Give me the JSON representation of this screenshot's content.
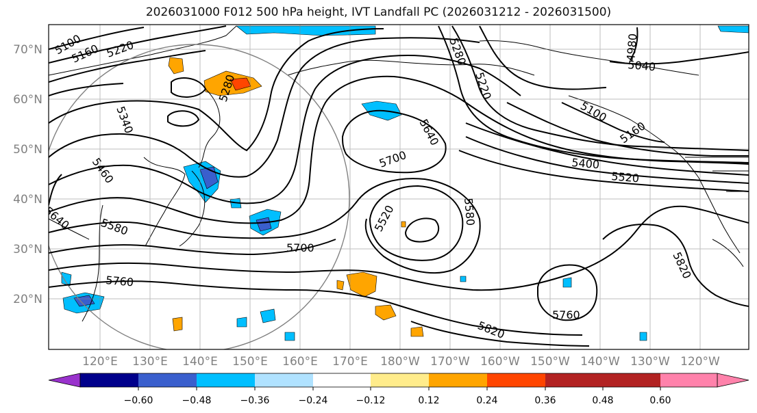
{
  "title": "2026031000 F012 500 hPa height, IVT Landfall PC (2026031212 - 2026031500)",
  "lat_labels": [
    "70°N",
    "60°N",
    "50°N",
    "40°N",
    "30°N",
    "20°N"
  ],
  "lon_labels": [
    "120°E",
    "130°E",
    "140°E",
    "150°E",
    "160°E",
    "170°E",
    "180°W",
    "170°W",
    "160°W",
    "150°W",
    "140°W",
    "130°W",
    "120°W"
  ],
  "colorbar": {
    "ticks": [
      "−0.60",
      "−0.48",
      "−0.36",
      "−0.24",
      "−0.12",
      "0.12",
      "0.24",
      "0.36",
      "0.48",
      "0.60"
    ],
    "colors": [
      "#9932cc",
      "#00008b",
      "#3a5fcd",
      "#00bfff",
      "#b0e2ff",
      "#ffffff",
      "#ffec8b",
      "#ffa500",
      "#ff4500",
      "#b22222",
      "#ff82ab"
    ]
  },
  "contour_labels": [
    {
      "id": "c5100a",
      "text": "5100"
    },
    {
      "id": "c5160",
      "text": "5160"
    },
    {
      "id": "c5220",
      "text": "5220"
    },
    {
      "id": "c5280a",
      "text": "5280"
    },
    {
      "id": "c5280b",
      "text": "5280"
    },
    {
      "id": "c5220b",
      "text": "5220"
    },
    {
      "id": "c4980",
      "text": "4980"
    },
    {
      "id": "c5040",
      "text": "5040"
    },
    {
      "id": "c5100b",
      "text": "5100"
    },
    {
      "id": "c5160b",
      "text": "5160"
    },
    {
      "id": "c5340",
      "text": "5340"
    },
    {
      "id": "c5640",
      "text": "5640"
    },
    {
      "id": "c5700a",
      "text": "5700"
    },
    {
      "id": "c5400",
      "text": "5400"
    },
    {
      "id": "c5520a",
      "text": "5520"
    },
    {
      "id": "c5460",
      "text": "5460"
    },
    {
      "id": "c5640b",
      "text": "5640"
    },
    {
      "id": "c5580a",
      "text": "5580"
    },
    {
      "id": "c5520b",
      "text": "5520"
    },
    {
      "id": "c5580b",
      "text": "5580"
    },
    {
      "id": "c5700b",
      "text": "5700"
    },
    {
      "id": "c5760a",
      "text": "5760"
    },
    {
      "id": "c5820a",
      "text": "5820"
    },
    {
      "id": "c5760b",
      "text": "5760"
    },
    {
      "id": "c5820b",
      "text": "5820"
    }
  ]
}
